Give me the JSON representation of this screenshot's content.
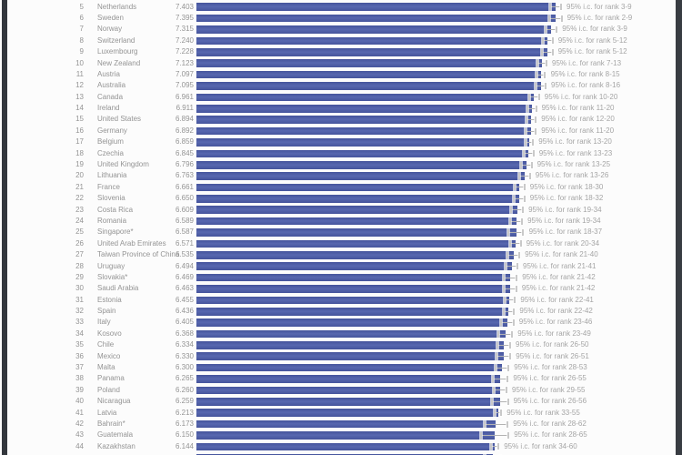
{
  "page": {
    "background": "#fcfcfc",
    "left_edge_color": "#33373d",
    "right_edge_color": "#383c42"
  },
  "chart_data": {
    "type": "bar",
    "orientation": "horizontal",
    "title": "",
    "xlabel": "",
    "ylabel": "",
    "xlim": [
      0,
      7.5
    ],
    "grid": false,
    "legend": "none",
    "bar_color": "#4a5aa5",
    "whisker_color": "#c9c9c9",
    "text_color": "#949494",
    "ci_label_prefix": "95% i.c. for rank",
    "rows": [
      {
        "rank": "5",
        "country": "Netherlands",
        "score": "7.403",
        "ci_label": "95% i.c. for rank 3-9",
        "ci_rank_low": 3,
        "ci_rank_high": 9,
        "ci_score_halfwidth_est": 0.13
      },
      {
        "rank": "6",
        "country": "Sweden",
        "score": "7.395",
        "ci_label": "95% i.c. for rank 2-9",
        "ci_rank_low": 2,
        "ci_rank_high": 9,
        "ci_score_halfwidth_est": 0.15
      },
      {
        "rank": "7",
        "country": "Norway",
        "score": "7.315",
        "ci_label": "95% i.c. for rank 3-9",
        "ci_rank_low": 3,
        "ci_rank_high": 9,
        "ci_score_halfwidth_est": 0.13
      },
      {
        "rank": "8",
        "country": "Switzerland",
        "score": "7.240",
        "ci_label": "95% i.c. for rank 5-12",
        "ci_rank_low": 5,
        "ci_rank_high": 12,
        "ci_score_halfwidth_est": 0.12
      },
      {
        "rank": "9",
        "country": "Luxembourg",
        "score": "7.228",
        "ci_label": "95% i.c. for rank 5-12",
        "ci_rank_low": 5,
        "ci_rank_high": 12,
        "ci_score_halfwidth_est": 0.13
      },
      {
        "rank": "10",
        "country": "New Zealand",
        "score": "7.123",
        "ci_label": "95% i.c. for rank 7-13",
        "ci_rank_low": 7,
        "ci_rank_high": 13,
        "ci_score_halfwidth_est": 0.11
      },
      {
        "rank": "11",
        "country": "Austria",
        "score": "7.097",
        "ci_label": "95% i.c. for rank 8-15",
        "ci_rank_low": 8,
        "ci_rank_high": 15,
        "ci_score_halfwidth_est": 0.11
      },
      {
        "rank": "12",
        "country": "Australia",
        "score": "7.095",
        "ci_label": "95% i.c. for rank 8-16",
        "ci_rank_low": 8,
        "ci_rank_high": 16,
        "ci_score_halfwidth_est": 0.12
      },
      {
        "rank": "13",
        "country": "Canada",
        "score": "6.961",
        "ci_label": "95% i.c. for rank 10-20",
        "ci_rank_low": 10,
        "ci_rank_high": 20,
        "ci_score_halfwidth_est": 0.12
      },
      {
        "rank": "14",
        "country": "Ireland",
        "score": "6.911",
        "ci_label": "95% i.c. for rank 11-20",
        "ci_rank_low": 11,
        "ci_rank_high": 20,
        "ci_score_halfwidth_est": 0.11
      },
      {
        "rank": "15",
        "country": "United States",
        "score": "6.894",
        "ci_label": "95% i.c. for rank 12-20",
        "ci_rank_low": 12,
        "ci_rank_high": 20,
        "ci_score_halfwidth_est": 0.12
      },
      {
        "rank": "16",
        "country": "Germany",
        "score": "6.892",
        "ci_label": "95% i.c. for rank 11-20",
        "ci_rank_low": 11,
        "ci_rank_high": 20,
        "ci_score_halfwidth_est": 0.12
      },
      {
        "rank": "17",
        "country": "Belgium",
        "score": "6.859",
        "ci_label": "95% i.c. for rank 13-20",
        "ci_rank_low": 13,
        "ci_rank_high": 20,
        "ci_score_halfwidth_est": 0.1
      },
      {
        "rank": "18",
        "country": "Czechia",
        "score": "6.845",
        "ci_label": "95% i.c. for rank 13-23",
        "ci_rank_low": 13,
        "ci_rank_high": 23,
        "ci_score_halfwidth_est": 0.12
      },
      {
        "rank": "19",
        "country": "United Kingdom",
        "score": "6.796",
        "ci_label": "95% i.c. for rank 13-25",
        "ci_rank_low": 13,
        "ci_rank_high": 25,
        "ci_score_halfwidth_est": 0.13
      },
      {
        "rank": "20",
        "country": "Lithuania",
        "score": "6.763",
        "ci_label": "95% i.c. for rank 13-26",
        "ci_rank_low": 13,
        "ci_rank_high": 26,
        "ci_score_halfwidth_est": 0.13
      },
      {
        "rank": "21",
        "country": "France",
        "score": "6.661",
        "ci_label": "95% i.c. for rank 18-30",
        "ci_rank_low": 18,
        "ci_rank_high": 30,
        "ci_score_halfwidth_est": 0.12
      },
      {
        "rank": "22",
        "country": "Slovenia",
        "score": "6.650",
        "ci_label": "95% i.c. for rank 18-32",
        "ci_rank_low": 18,
        "ci_rank_high": 32,
        "ci_score_halfwidth_est": 0.13
      },
      {
        "rank": "23",
        "country": "Costa Rica",
        "score": "6.609",
        "ci_label": "95% i.c. for rank 19-34",
        "ci_rank_low": 19,
        "ci_rank_high": 34,
        "ci_score_halfwidth_est": 0.14
      },
      {
        "rank": "24",
        "country": "Romania",
        "score": "6.589",
        "ci_label": "95% i.c. for rank 19-34",
        "ci_rank_low": 19,
        "ci_rank_high": 34,
        "ci_score_halfwidth_est": 0.14
      },
      {
        "rank": "25",
        "country": "Singapore*",
        "score": "6.587",
        "ci_label": "95% i.c. for rank 18-37",
        "ci_rank_low": 18,
        "ci_rank_high": 37,
        "ci_score_halfwidth_est": 0.17
      },
      {
        "rank": "26",
        "country": "United Arab Emirates",
        "score": "6.571",
        "ci_label": "95% i.c. for rank 20-34",
        "ci_rank_low": 20,
        "ci_rank_high": 34,
        "ci_score_halfwidth_est": 0.13
      },
      {
        "rank": "27",
        "country": "Taiwan Province of China",
        "score": "6.535",
        "ci_label": "95% i.c. for rank 21-40",
        "ci_rank_low": 21,
        "ci_rank_high": 40,
        "ci_score_halfwidth_est": 0.14
      },
      {
        "rank": "28",
        "country": "Uruguay",
        "score": "6.494",
        "ci_label": "95% i.c. for rank 21-41",
        "ci_rank_low": 21,
        "ci_rank_high": 41,
        "ci_score_halfwidth_est": 0.14
      },
      {
        "rank": "29",
        "country": "Slovakia*",
        "score": "6.469",
        "ci_label": "95% i.c. for rank 21-42",
        "ci_rank_low": 21,
        "ci_rank_high": 42,
        "ci_score_halfwidth_est": 0.15
      },
      {
        "rank": "30",
        "country": "Saudi Arabia",
        "score": "6.463",
        "ci_label": "95% i.c. for rank 21-42",
        "ci_rank_low": 21,
        "ci_rank_high": 42,
        "ci_score_halfwidth_est": 0.15
      },
      {
        "rank": "31",
        "country": "Estonia",
        "score": "6.455",
        "ci_label": "95% i.c. for rank 22-41",
        "ci_rank_low": 22,
        "ci_rank_high": 41,
        "ci_score_halfwidth_est": 0.13
      },
      {
        "rank": "32",
        "country": "Spain",
        "score": "6.436",
        "ci_label": "95% i.c. for rank 22-42",
        "ci_rank_low": 22,
        "ci_rank_high": 42,
        "ci_score_halfwidth_est": 0.13
      },
      {
        "rank": "33",
        "country": "Italy",
        "score": "6.405",
        "ci_label": "95% i.c. for rank 23-46",
        "ci_rank_low": 23,
        "ci_rank_high": 46,
        "ci_score_halfwidth_est": 0.15
      },
      {
        "rank": "34",
        "country": "Kosovo",
        "score": "6.368",
        "ci_label": "95% i.c. for rank 23-49",
        "ci_rank_low": 23,
        "ci_rank_high": 49,
        "ci_score_halfwidth_est": 0.16
      },
      {
        "rank": "35",
        "country": "Chile",
        "score": "6.334",
        "ci_label": "95% i.c. for rank 26-50",
        "ci_rank_low": 26,
        "ci_rank_high": 50,
        "ci_score_halfwidth_est": 0.15
      },
      {
        "rank": "36",
        "country": "Mexico",
        "score": "6.330",
        "ci_label": "95% i.c. for rank 26-51",
        "ci_rank_low": 26,
        "ci_rank_high": 51,
        "ci_score_halfwidth_est": 0.16
      },
      {
        "rank": "37",
        "country": "Malta",
        "score": "6.300",
        "ci_label": "95% i.c. for rank 28-53",
        "ci_rank_low": 28,
        "ci_rank_high": 53,
        "ci_score_halfwidth_est": 0.15
      },
      {
        "rank": "38",
        "country": "Panama",
        "score": "6.265",
        "ci_label": "95% i.c. for rank 26-55",
        "ci_rank_low": 26,
        "ci_rank_high": 55,
        "ci_score_halfwidth_est": 0.17
      },
      {
        "rank": "39",
        "country": "Poland",
        "score": "6.260",
        "ci_label": "95% i.c. for rank 29-55",
        "ci_rank_low": 29,
        "ci_rank_high": 55,
        "ci_score_halfwidth_est": 0.15
      },
      {
        "rank": "40",
        "country": "Nicaragua",
        "score": "6.259",
        "ci_label": "95% i.c. for rank 26-56",
        "ci_rank_low": 26,
        "ci_rank_high": 56,
        "ci_score_halfwidth_est": 0.18
      },
      {
        "rank": "41",
        "country": "Latvia",
        "score": "6.213",
        "ci_label": "95% i.c. for rank 33-55",
        "ci_rank_low": 33,
        "ci_rank_high": 55,
        "ci_score_halfwidth_est": 0.09
      },
      {
        "rank": "42",
        "country": "Bahrain*",
        "score": "6.173",
        "ci_label": "95% i.c. for rank 28-62",
        "ci_rank_low": 28,
        "ci_rank_high": 62,
        "ci_score_halfwidth_est": 0.26
      },
      {
        "rank": "43",
        "country": "Guatemala",
        "score": "6.150",
        "ci_label": "95% i.c. for rank 28-65",
        "ci_rank_low": 28,
        "ci_rank_high": 65,
        "ci_score_halfwidth_est": 0.3
      },
      {
        "rank": "44",
        "country": "Kazakhstan",
        "score": "6.144",
        "ci_label": "95% i.c. for rank 34-60",
        "ci_rank_low": 34,
        "ci_rank_high": 60,
        "ci_score_halfwidth_est": 0.1
      }
    ],
    "partial_bottom_bar": {
      "note": "top sliver of rank-45 bar visible at bottom edge, text cut off",
      "score_est": 6.1,
      "ci_score_halfwidth_est": 0.18
    }
  }
}
